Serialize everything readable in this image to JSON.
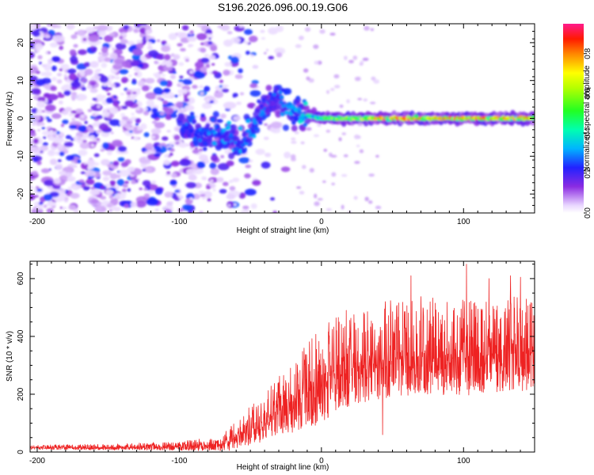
{
  "title": "S196.2026.096.00.19.G06",
  "chart_data": [
    {
      "type": "heatmap",
      "name": "spectrogram",
      "xlabel": "Height of straight line (km)",
      "ylabel": "Frequency (Hz)",
      "xlim": [
        -205,
        150
      ],
      "ylim": [
        -25,
        25
      ],
      "xticks": [
        -200,
        -100,
        0,
        100
      ],
      "yticks": [
        -20,
        -10,
        0,
        10,
        20
      ],
      "description_of_signal": {
        "noise_region_km": [
          -205,
          -20
        ],
        "carrier_frequency_hz": 0,
        "features": [
          {
            "x_km": -90,
            "freq_hz": -3,
            "amp": 0.3
          },
          {
            "x_km": -65,
            "freq_hz": -5,
            "amp": 0.35
          },
          {
            "x_km": -55,
            "freq_hz": -7,
            "amp": 0.35
          },
          {
            "x_km": -40,
            "freq_hz": 3,
            "amp": 0.3
          },
          {
            "x_km": -30,
            "freq_hz": 5,
            "amp": 0.3
          },
          {
            "x_km": -15,
            "freq_hz": 1,
            "amp": 0.4
          },
          {
            "x_km": 0,
            "freq_hz": 0,
            "amp": 0.6
          },
          {
            "x_km": 50,
            "freq_hz": 0,
            "amp": 0.9
          },
          {
            "x_km": 100,
            "freq_hz": 0,
            "amp": 0.95
          },
          {
            "x_km": 150,
            "freq_hz": 0,
            "amp": 0.9
          }
        ]
      },
      "colorbar": {
        "label": "Normalized spectral amplitude",
        "range": [
          0,
          0.95
        ],
        "ticks": [
          0.0,
          0.2,
          0.4,
          0.6,
          0.8
        ],
        "tick_labels": [
          "0.0",
          "0.2",
          "0.4",
          "0.6",
          "0.8"
        ]
      }
    },
    {
      "type": "line",
      "name": "snr",
      "xlabel": "Height of straight line (km)",
      "ylabel": "SNR (10 * v/v)",
      "xlim": [
        -205,
        150
      ],
      "ylim": [
        0,
        660
      ],
      "xticks": [
        -200,
        -100,
        0,
        100
      ],
      "yticks": [
        0,
        200,
        400,
        600
      ],
      "color": "#ee2222",
      "envelope": {
        "x": [
          -205,
          -150,
          -100,
          -75,
          -65,
          -55,
          -45,
          -35,
          -25,
          -15,
          -5,
          5,
          15,
          30,
          50,
          70,
          90,
          110,
          130,
          150
        ],
        "base": [
          15,
          15,
          18,
          22,
          35,
          60,
          90,
          120,
          150,
          185,
          210,
          250,
          280,
          300,
          320,
          330,
          320,
          330,
          340,
          340
        ],
        "spread": [
          6,
          8,
          12,
          18,
          30,
          45,
          60,
          75,
          90,
          110,
          120,
          130,
          130,
          130,
          130,
          130,
          130,
          130,
          130,
          130
        ]
      },
      "peaks": [
        {
          "x": 102,
          "y": 650
        },
        {
          "x": 63,
          "y": 610
        },
        {
          "x": 133,
          "y": 610
        },
        {
          "x": 118,
          "y": 600
        },
        {
          "x": 140,
          "y": 605
        },
        {
          "x": 43,
          "y": 60
        }
      ]
    }
  ]
}
